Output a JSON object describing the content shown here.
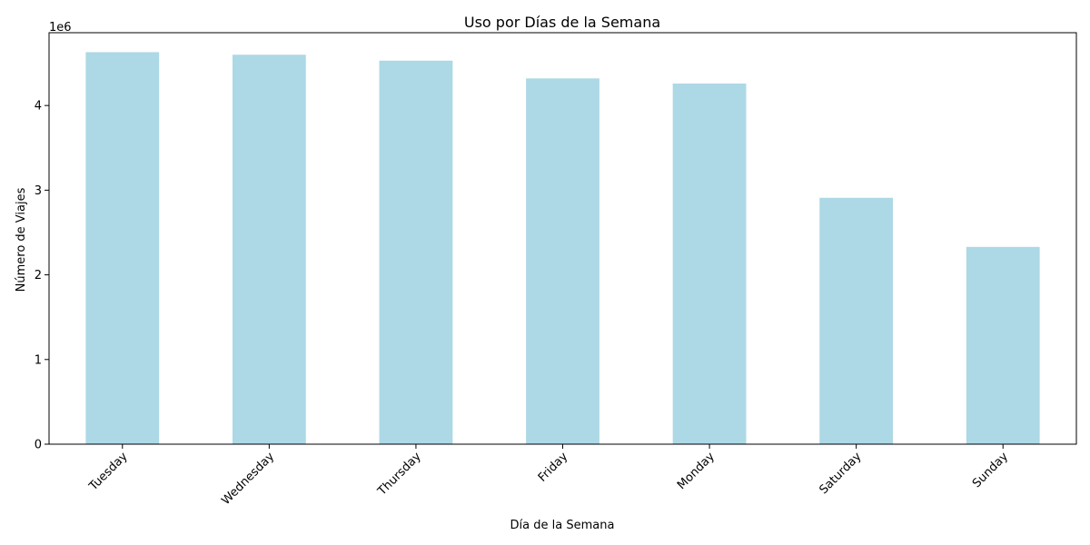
{
  "chart_data": {
    "type": "bar",
    "title": "Uso por Días de la Semana",
    "xlabel": "Día de la Semana",
    "ylabel": "Número de Viajes",
    "y_scale_label": "1e6",
    "categories": [
      "Tuesday",
      "Wednesday",
      "Thursday",
      "Friday",
      "Monday",
      "Saturday",
      "Sunday"
    ],
    "values": [
      4630000,
      4600000,
      4530000,
      4320000,
      4260000,
      2910000,
      2330000
    ],
    "ylim": [
      0,
      4860000
    ],
    "yticks": [
      0,
      1000000,
      2000000,
      3000000,
      4000000
    ],
    "ytick_labels": [
      "0",
      "1",
      "2",
      "3",
      "4"
    ],
    "bar_color": "#add8e6",
    "grid": false,
    "legend": false
  }
}
